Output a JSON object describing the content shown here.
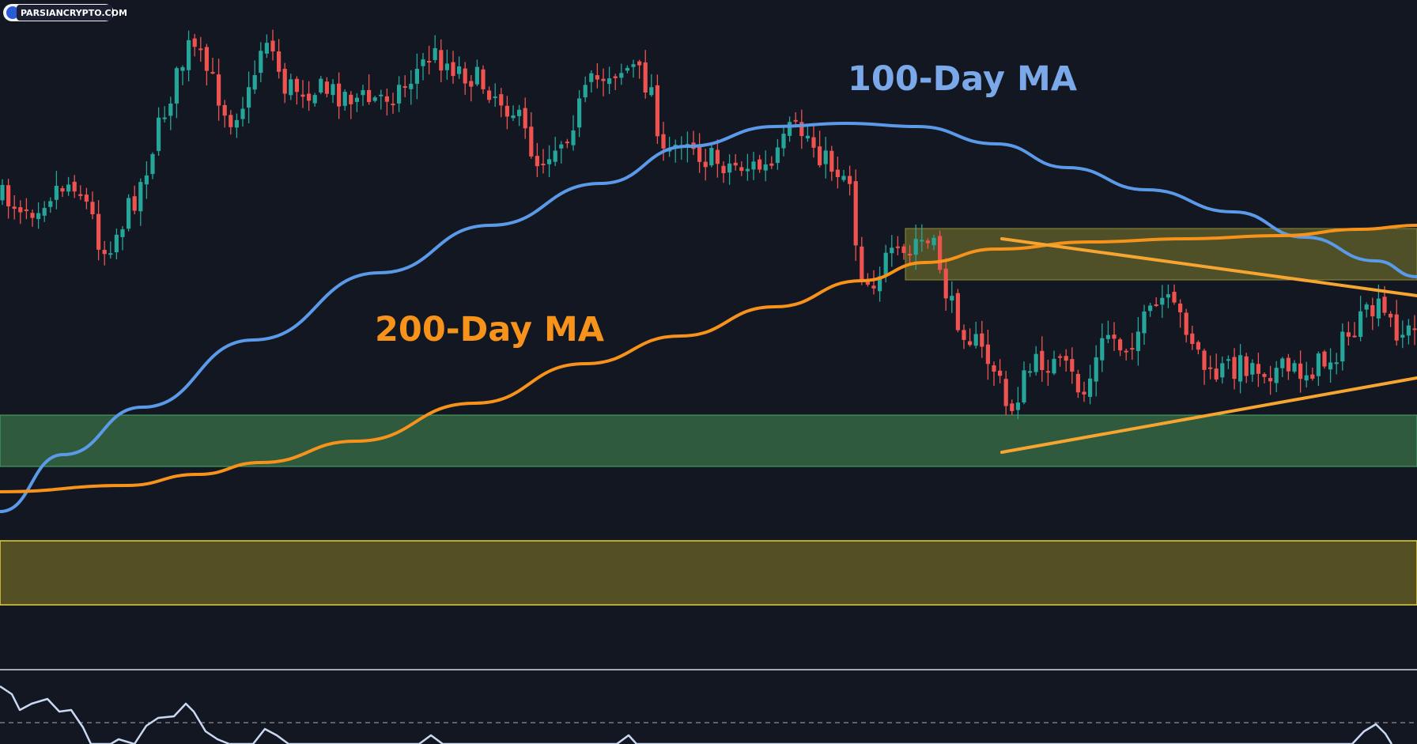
{
  "watermark": {
    "text": "PARSIANCRYPTO.COM"
  },
  "colors": {
    "background": "#131722",
    "bull": "#26a69a",
    "bear": "#ef5350",
    "ma100": "#5b9ae8",
    "ma200": "#f7931a",
    "trendline": "#f7a531",
    "zone_resistance": "#5b5a28",
    "zone_support_green": "#2f5a3e",
    "zone_support_yellow": "#545024",
    "oscillator": "#c9d9f2"
  },
  "chart_data": {
    "type": "candlestick",
    "grid": false,
    "legend": "none",
    "series": [
      {
        "name": "100-Day MA",
        "label_text": "100-Day MA"
      },
      {
        "name": "200-Day MA",
        "label_text": "200-Day MA"
      }
    ],
    "annotations": [
      "100-Day MA",
      "200-Day MA"
    ]
  }
}
